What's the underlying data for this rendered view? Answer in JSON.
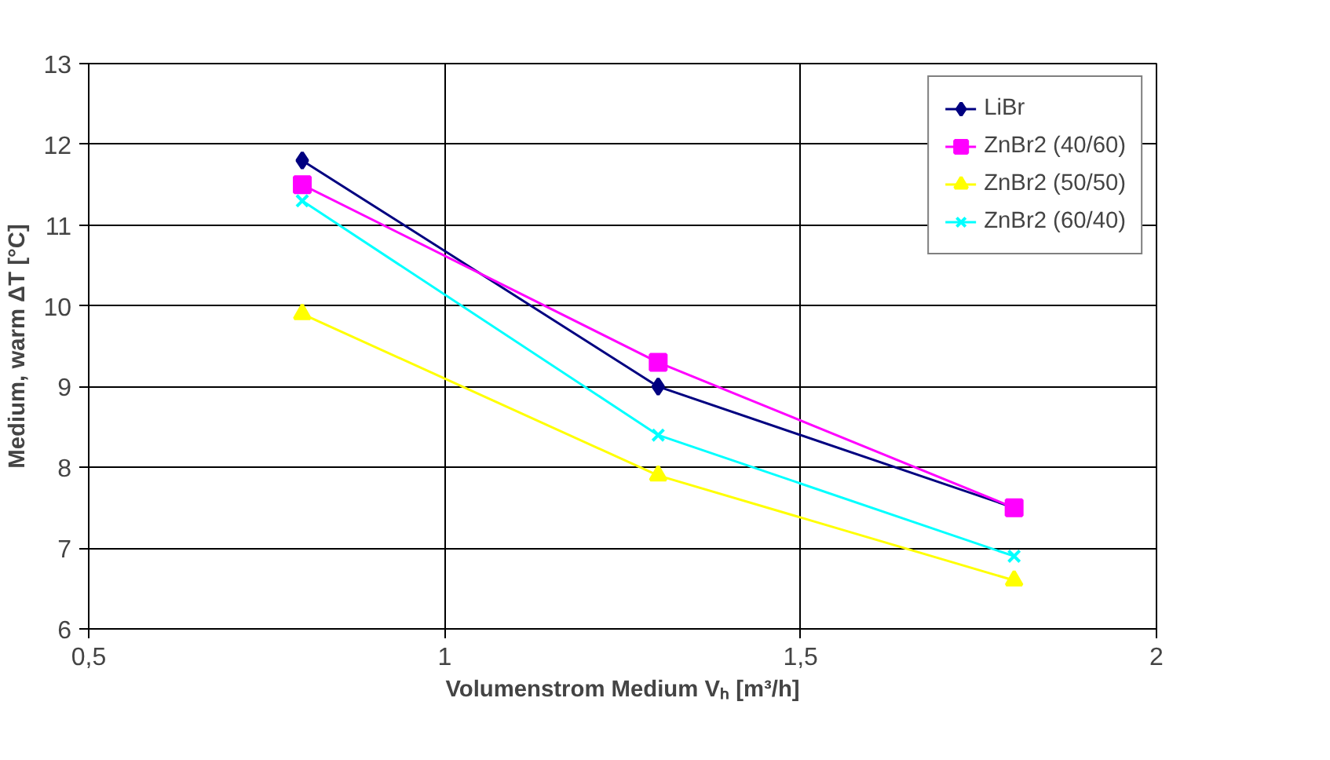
{
  "chart_data": {
    "type": "line",
    "xlabel": "Volumenstrom Medium Vₕ [m³/h]",
    "ylabel": "Medium, warm ΔT [°C]",
    "x": [
      0.8,
      1.3,
      1.8
    ],
    "series": [
      {
        "name": "LiBr",
        "color": "#000080",
        "marker": "diamond",
        "values": [
          11.8,
          9.0,
          7.5
        ]
      },
      {
        "name": "ZnBr2 (40/60)",
        "color": "#ff00ff",
        "marker": "square",
        "values": [
          11.5,
          9.3,
          7.5
        ]
      },
      {
        "name": "ZnBr2 (50/50)",
        "color": "#ffff00",
        "marker": "triangle",
        "values": [
          9.9,
          7.9,
          6.6
        ]
      },
      {
        "name": "ZnBr2 (60/40)",
        "color": "#00ffff",
        "marker": "cross",
        "values": [
          11.3,
          8.4,
          6.9
        ]
      }
    ],
    "xlim": [
      0.5,
      2
    ],
    "xticks": [
      {
        "value": 0.5,
        "label": "0,5"
      },
      1,
      {
        "value": 1.5,
        "label": "1,5"
      },
      2
    ],
    "ylim": [
      6,
      13
    ],
    "yticks": [
      6,
      7,
      8,
      9,
      10,
      11,
      12,
      13
    ],
    "grid": true,
    "legend": "top right",
    "line_style": "solid"
  }
}
